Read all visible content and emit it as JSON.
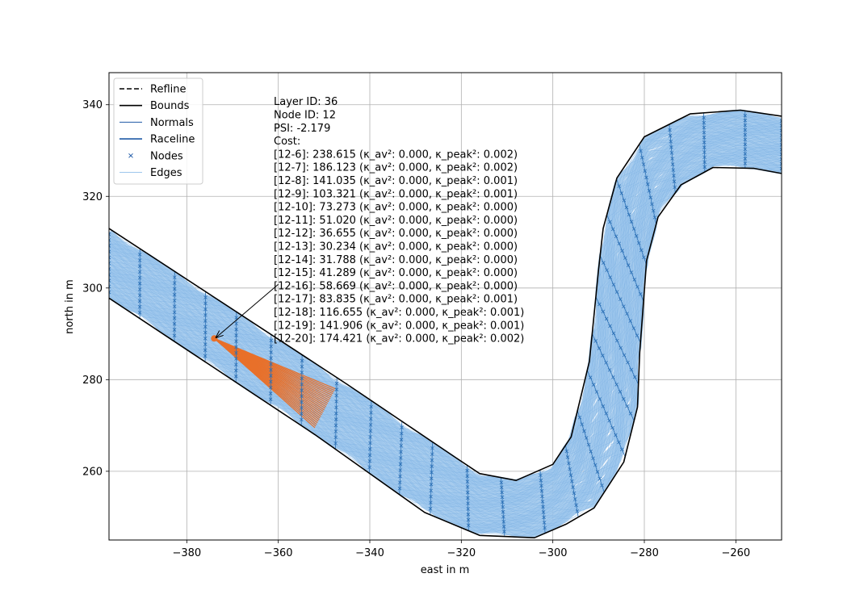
{
  "chart_data": {
    "type": "scatter",
    "xlabel": "east in m",
    "ylabel": "north in m",
    "xlim": [
      -397,
      -250
    ],
    "ylim": [
      245,
      347
    ],
    "x_ticks": [
      -380,
      -360,
      -340,
      -320,
      -300,
      -280,
      -260
    ],
    "y_ticks": [
      260,
      280,
      300,
      320,
      340
    ],
    "x_tick_labels": [
      "−380",
      "−360",
      "−340",
      "−320",
      "−300",
      "−280",
      "−260"
    ],
    "y_tick_labels": [
      "260",
      "280",
      "300",
      "320",
      "340"
    ],
    "grid": true,
    "legend_position": "top-left",
    "legend": [
      {
        "label": "Refline",
        "style": "dashed",
        "color": "#000000"
      },
      {
        "label": "Bounds",
        "style": "solid",
        "color": "#000000"
      },
      {
        "label": "Normals",
        "style": "thin",
        "color": "#1f5aa6"
      },
      {
        "label": "Raceline",
        "style": "solid",
        "color": "#1f5aa6"
      },
      {
        "label": "Nodes",
        "style": "marker-x",
        "color": "#1f5aa6"
      },
      {
        "label": "Edges",
        "style": "thin",
        "color": "#9dc6ec"
      }
    ],
    "colors": {
      "edges": "#9dc6ec",
      "normals": "#2a6fb5",
      "bounds": "#000000",
      "selected": "#e8702a",
      "grid": "#b0b0b0"
    },
    "bound_left": [
      [
        -397,
        313
      ],
      [
        -345,
        279
      ],
      [
        -322,
        263.5
      ],
      [
        -316,
        259.5
      ],
      [
        -308,
        258
      ],
      [
        -300,
        261.5
      ],
      [
        -296,
        267.5
      ],
      [
        -292,
        284
      ],
      [
        -290,
        304
      ],
      [
        -289,
        313
      ],
      [
        -286,
        324
      ],
      [
        -280,
        333
      ],
      [
        -270,
        338
      ],
      [
        -259,
        338.8
      ],
      [
        -250,
        337.5
      ]
    ],
    "bound_right": [
      [
        -397,
        297.8
      ],
      [
        -352,
        268
      ],
      [
        -328,
        251
      ],
      [
        -316,
        246
      ],
      [
        -304,
        245.5
      ],
      [
        -297,
        248.5
      ],
      [
        -291,
        252
      ],
      [
        -284.5,
        262
      ],
      [
        -281.5,
        274
      ],
      [
        -281,
        286
      ],
      [
        -279.5,
        306
      ],
      [
        -277,
        315.5
      ],
      [
        -272,
        322.5
      ],
      [
        -265,
        326.3
      ],
      [
        -256,
        326.1
      ],
      [
        -250,
        325
      ]
    ],
    "centerline": [
      [
        -397,
        305.4
      ],
      [
        -348,
        273.5
      ],
      [
        -324,
        257.3
      ],
      [
        -316,
        252.8
      ],
      [
        -306,
        251.8
      ],
      [
        -298.5,
        255
      ],
      [
        -293.5,
        260
      ],
      [
        -288.3,
        273
      ],
      [
        -286.5,
        285
      ],
      [
        -285.5,
        305
      ],
      [
        -283,
        318.7
      ],
      [
        -276,
        327.7
      ],
      [
        -267.5,
        332.2
      ],
      [
        -257.5,
        332.5
      ],
      [
        -250,
        331.2
      ]
    ],
    "normal_stations": [
      -395,
      -387,
      -380,
      -373,
      -366,
      -359,
      -352,
      -346,
      -340,
      -334,
      -328,
      -322,
      -316,
      -310,
      -304,
      -299,
      -295,
      -292,
      -290,
      -289,
      -288,
      -286,
      -283,
      -278,
      -271,
      -264,
      -257
    ],
    "selected_node": {
      "x": -374,
      "y": 289
    },
    "selected_layer_end": [
      [
        -352,
        269.5
      ],
      [
        -347.5,
        278
      ]
    ],
    "annotation": {
      "text_lines": [
        "Layer ID: 36",
        "Node ID: 12",
        "PSI: -2.179",
        "Cost:",
        "[12-6]: 238.615 (κ_av²: 0.000, κ_peak²: 0.002)",
        "[12-7]: 186.123 (κ_av²: 0.000, κ_peak²: 0.002)",
        "[12-8]: 141.035 (κ_av²: 0.000, κ_peak²: 0.001)",
        "[12-9]: 103.321 (κ_av²: 0.000, κ_peak²: 0.001)",
        "[12-10]: 73.273 (κ_av²: 0.000, κ_peak²: 0.000)",
        "[12-11]: 51.020 (κ_av²: 0.000, κ_peak²: 0.000)",
        "[12-12]: 36.655 (κ_av²: 0.000, κ_peak²: 0.000)",
        "[12-13]: 30.234 (κ_av²: 0.000, κ_peak²: 0.000)",
        "[12-14]: 31.788 (κ_av²: 0.000, κ_peak²: 0.000)",
        "[12-15]: 41.289 (κ_av²: 0.000, κ_peak²: 0.000)",
        "[12-16]: 58.669 (κ_av²: 0.000, κ_peak²: 0.000)",
        "[12-17]: 83.835 (κ_av²: 0.000, κ_peak²: 0.001)",
        "[12-18]: 116.655 (κ_av²: 0.000, κ_peak²: 0.001)",
        "[12-19]: 141.906 (κ_av²: 0.000, κ_peak²: 0.001)",
        "[12-20]: 174.421 (κ_av²: 0.000, κ_peak²: 0.002)"
      ],
      "text_anchor": {
        "x": -361,
        "y": 340.8
      },
      "arrow_tail": {
        "x": -360,
        "y": 300.8
      },
      "arrow_head": {
        "x": -373.6,
        "y": 289.2
      }
    }
  }
}
